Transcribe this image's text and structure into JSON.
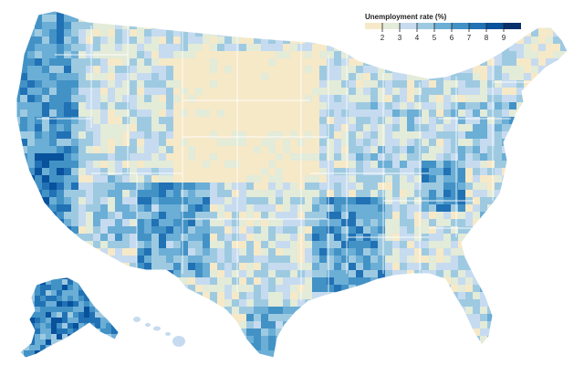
{
  "legend": {
    "title": "Unemployment rate (%)",
    "ticks": [
      "2",
      "3",
      "4",
      "5",
      "6",
      "7",
      "8",
      "9"
    ],
    "colors": [
      "#f6e9c8",
      "#e3ebd9",
      "#c6dbef",
      "#9ecae1",
      "#6baed6",
      "#4292c6",
      "#2171b5",
      "#08519c",
      "#08306b"
    ]
  },
  "map": {
    "outline_color": "#ffffff",
    "region_names": [
      "contiguous-us",
      "alaska",
      "hawaii"
    ]
  }
}
